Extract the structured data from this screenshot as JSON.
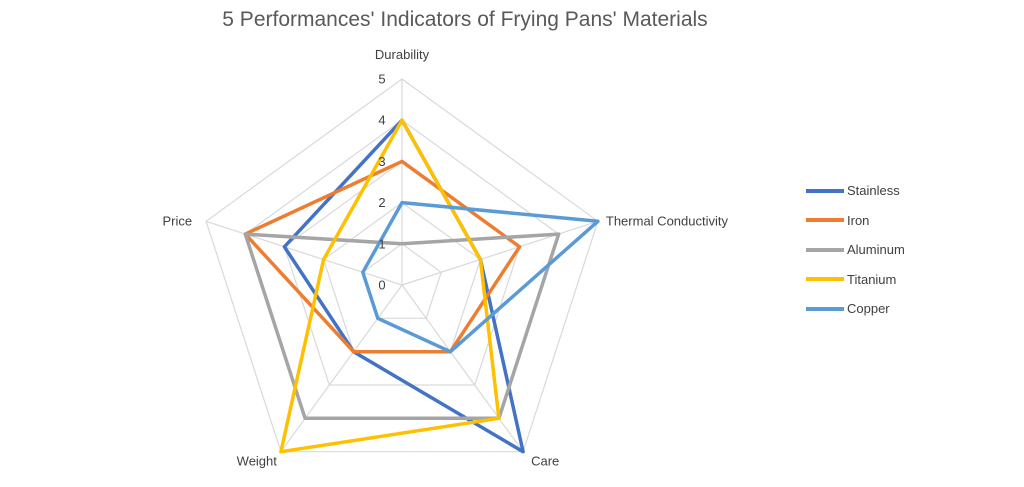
{
  "chart_data": {
    "type": "radar",
    "title": "5 Performances' Indicators of Frying Pans' Materials",
    "axes": [
      "Durability",
      "Thermal Conductivity",
      "Care",
      "Weight",
      "Price"
    ],
    "ticks": [
      "0",
      "1",
      "2",
      "3",
      "4",
      "5"
    ],
    "rmin": 0,
    "rmax": 5,
    "grid": true,
    "legend_position": "right",
    "series": [
      {
        "name": "Stainless",
        "color": "#4472C4",
        "values": [
          4,
          2,
          5,
          2,
          3
        ]
      },
      {
        "name": "Iron",
        "color": "#ED7D31",
        "values": [
          3,
          3,
          2,
          2,
          4
        ]
      },
      {
        "name": "Aluminum",
        "color": "#A5A5A5",
        "values": [
          1,
          4,
          4,
          4,
          4
        ]
      },
      {
        "name": "Titanium",
        "color": "#FFC000",
        "values": [
          4,
          2,
          4,
          5,
          2
        ]
      },
      {
        "name": "Copper",
        "color": "#5B9BD5",
        "values": [
          2,
          5,
          2,
          1,
          1
        ]
      }
    ]
  }
}
